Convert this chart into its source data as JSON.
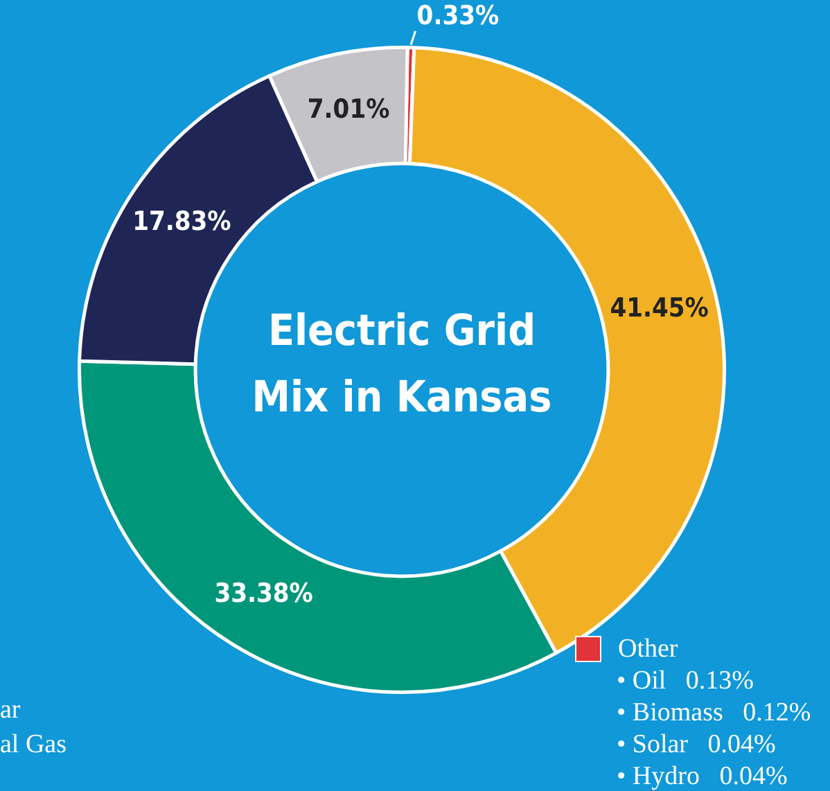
{
  "chart_data": {
    "type": "donut",
    "title": "Electric Grid Mix in Kansas",
    "categories": [
      "Other",
      null,
      null,
      null,
      null
    ],
    "values": [
      0.33,
      41.45,
      33.38,
      17.83,
      7.01
    ],
    "colors": [
      "#e0343a",
      "#f2b124",
      "#00967a",
      "#1f2656",
      "#c3c3c8"
    ],
    "value_labels": [
      "0.33%",
      "41.45%",
      "33.38%",
      "17.83%",
      "7.01%"
    ],
    "legend": "bottom right",
    "annotations": [
      "ar",
      "al Gas",
      "• Oil   0.13%",
      "• Biomass   0.12%",
      "• Solar   0.04%",
      "• Hydro   0.04%"
    ]
  }
}
